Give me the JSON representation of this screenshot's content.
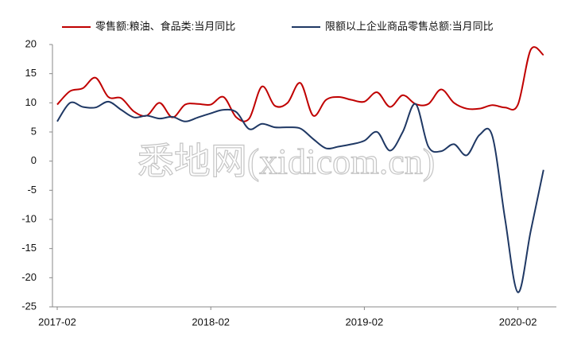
{
  "chart_data": {
    "type": "line",
    "watermark": "悉地网(xidicom.cn)",
    "categories": [
      "2017-02",
      null,
      null,
      null,
      null,
      null,
      null,
      null,
      null,
      null,
      null,
      null,
      "2018-02",
      null,
      null,
      null,
      null,
      null,
      null,
      null,
      null,
      null,
      null,
      null,
      "2019-02",
      null,
      null,
      null,
      null,
      null,
      null,
      null,
      null,
      null,
      null,
      null,
      "2020-02",
      null,
      null
    ],
    "series": [
      {
        "name": "零售额:粮油、食品类:当月同比",
        "color": "#c00000",
        "values": [
          9.7,
          12,
          12.5,
          14.3,
          11,
          10.8,
          8.5,
          7.8,
          10,
          7.5,
          9.7,
          9.8,
          9.7,
          11,
          7.5,
          7.3,
          12.8,
          9.5,
          10,
          13.4,
          7.8,
          10.5,
          11,
          10.5,
          10.2,
          11.8,
          9.3,
          11.3,
          9.8,
          9.8,
          12.3,
          10,
          9,
          9,
          9.6,
          9.2,
          9.7,
          19.1,
          18.2
        ]
      },
      {
        "name": "限额以上企业商品零售总额:当月同比",
        "color": "#1f3864",
        "values": [
          6.8,
          10,
          9.3,
          9.2,
          10.2,
          8.8,
          7.5,
          7.8,
          7.3,
          7.6,
          6.8,
          7.5,
          8.2,
          8.8,
          8.4,
          5.5,
          6.4,
          5.8,
          5.8,
          5.6,
          3.8,
          2.2,
          2.5,
          2.9,
          3.5,
          5,
          1.8,
          5,
          9.8,
          2.5,
          1.7,
          2.9,
          1,
          4.5,
          4.3,
          -10,
          -22.5,
          -12,
          -1.5
        ]
      }
    ],
    "ylim": [
      -25,
      20
    ],
    "yticks": [
      20,
      15,
      10,
      5,
      0,
      -5,
      -10,
      -15,
      -20,
      -25
    ],
    "grid": false,
    "legend": "top"
  }
}
